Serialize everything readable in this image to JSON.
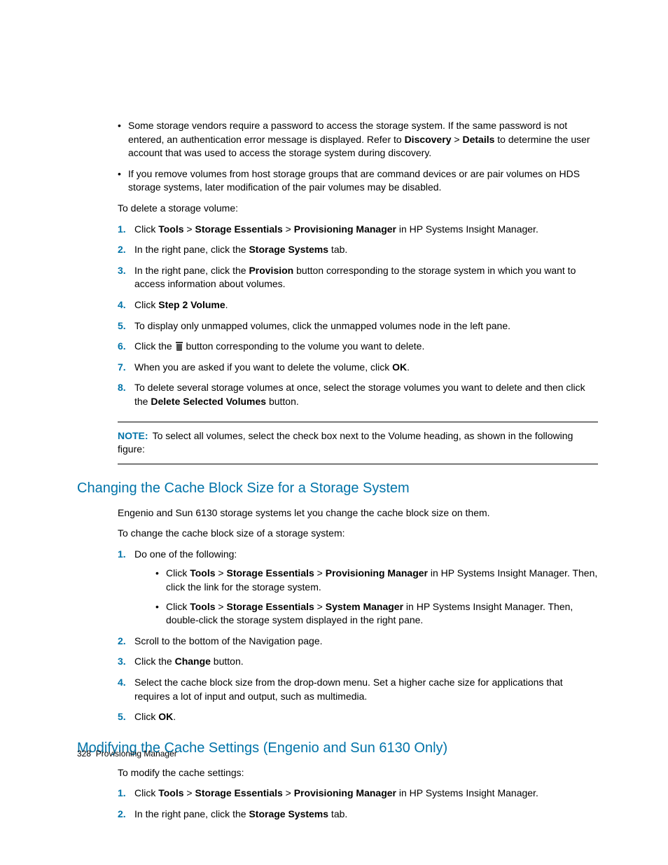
{
  "colors": {
    "accent": "#0073a8",
    "text": "#000000",
    "background": "#ffffff"
  },
  "typography": {
    "body_fontsize": 14,
    "heading_fontsize": 20,
    "footer_fontsize": 12,
    "font_family": "Arial"
  },
  "bullets_top": [
    {
      "pre": "Some storage vendors require a password to access the storage system. If the same password is not entered, an authentication error message is displayed. Refer to ",
      "b1": "Discovery",
      "sep1": " > ",
      "b2": "Details",
      "post": " to determine the user account that was used to access the storage system during discovery."
    },
    {
      "text": "If you remove volumes from host storage groups that are command devices or are pair volumes on HDS storage systems, later modification of the pair volumes may be disabled."
    }
  ],
  "intro1": "To delete a storage volume:",
  "steps1": {
    "s1": {
      "pre": "Click ",
      "b1": "Tools",
      "sep1": " > ",
      "b2": "Storage Essentials",
      "sep2": " > ",
      "b3": "Provisioning Manager",
      "post": " in HP Systems Insight Manager."
    },
    "s2": {
      "pre": "In the right pane, click the ",
      "b1": "Storage Systems",
      "post": " tab."
    },
    "s3": {
      "pre": "In the right pane, click the ",
      "b1": "Provision",
      "post": " button corresponding to the storage system in which you want to access information about volumes."
    },
    "s4": {
      "pre": "Click ",
      "b1": "Step 2 Volume",
      "post": "."
    },
    "s5": {
      "text": "To display only unmapped volumes, click the unmapped volumes node in the left pane."
    },
    "s6": {
      "pre": "Click the ",
      "post": " button corresponding to the volume you want to delete."
    },
    "s7": {
      "pre": "When you are asked if you want to delete the volume, click ",
      "b1": "OK",
      "post": "."
    },
    "s8": {
      "pre": "To delete several storage volumes at once, select the storage volumes you want to delete and then click the ",
      "b1": "Delete Selected Volumes",
      "post": " button."
    }
  },
  "note": {
    "label": "NOTE:",
    "text": "To select all volumes, select the check box next to the Volume heading, as shown in the following figure:"
  },
  "heading2": "Changing the Cache Block Size for a Storage System",
  "intro2a": "Engenio and Sun 6130 storage systems let you change the cache block size on them.",
  "intro2b": "To change the cache block size of a storage system:",
  "steps2": {
    "s1": {
      "text": "Do one of the following:",
      "sub": [
        {
          "pre": "Click ",
          "b1": "Tools",
          "sep1": " > ",
          "b2": "Storage Essentials",
          "sep2": " > ",
          "b3": "Provisioning Manager",
          "post": " in HP Systems Insight Manager. Then, click the link for the storage system."
        },
        {
          "pre": "Click ",
          "b1": "Tools",
          "sep1": " > ",
          "b2": "Storage Essentials",
          "sep2": " > ",
          "b3": "System Manager",
          "post": " in HP Systems Insight Manager. Then, double-click the storage system displayed in the right pane."
        }
      ]
    },
    "s2": {
      "text": "Scroll to the bottom of the Navigation page."
    },
    "s3": {
      "pre": "Click the ",
      "b1": "Change",
      "post": " button."
    },
    "s4": {
      "text": "Select the cache block size from the drop-down menu. Set a higher cache size for applications that requires a lot of input and output, such as multimedia."
    },
    "s5": {
      "pre": "Click ",
      "b1": "OK",
      "post": "."
    }
  },
  "heading3": "Modifying the Cache Settings (Engenio and Sun 6130 Only)",
  "intro3": "To modify the cache settings:",
  "steps3": {
    "s1": {
      "pre": "Click ",
      "b1": "Tools",
      "sep1": " > ",
      "b2": "Storage Essentials",
      "sep2": " > ",
      "b3": "Provisioning Manager",
      "post": " in HP Systems Insight Manager."
    },
    "s2": {
      "pre": "In the right pane, click the ",
      "b1": "Storage Systems",
      "post": " tab."
    }
  },
  "footer": {
    "page": "328",
    "title": "Provisioning Manager"
  }
}
